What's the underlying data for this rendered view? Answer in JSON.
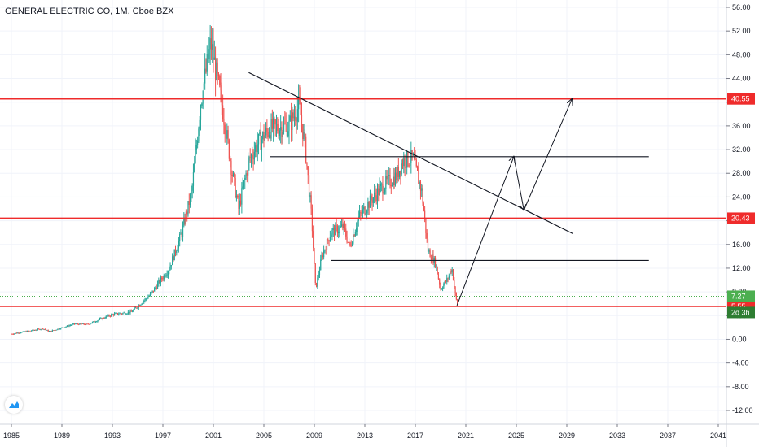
{
  "header": {
    "title": "GENERAL ELECTRIC CO, 1M, Cboe BZX"
  },
  "badges": {
    "resistance_high": "40.55",
    "resistance_mid": "20.43",
    "last_price": "7.27",
    "countdown": "2d 3h",
    "support_low": "5.55"
  },
  "colors": {
    "up_candle": "#26a69a",
    "down_candle": "#ef5350",
    "horizontal_line": "#ef2b2b",
    "trend_line": "#131722",
    "last_price_badge": "#4caf50",
    "countdown_badge": "#2e7d32",
    "level_badge": "#ef2b2b",
    "grid": "#f0f3fa"
  },
  "icons": {
    "logo": "tradingview-logo-icon"
  },
  "chart_data": {
    "type": "candlestick",
    "title": "GENERAL ELECTRIC CO, 1M, Cboe BZX",
    "x_ticks": [
      "1985",
      "1989",
      "1993",
      "1997",
      "2001",
      "2005",
      "2009",
      "2013",
      "2017",
      "2021",
      "2025",
      "2029",
      "2033",
      "2037",
      "2041"
    ],
    "y_ticks": [
      "56.00",
      "52.00",
      "48.00",
      "44.00",
      "40.00",
      "36.00",
      "32.00",
      "28.00",
      "24.00",
      "20.00",
      "16.00",
      "12.00",
      "8.00",
      "4.00",
      "0.00",
      "-4.00",
      "-8.00",
      "-12.00"
    ],
    "xlim": [
      1984.6,
      2042.4
    ],
    "ylim": [
      -14.4,
      57.8
    ],
    "price_anchors": [
      [
        1985.0,
        0.9
      ],
      [
        1987.5,
        1.8
      ],
      [
        1988.0,
        1.3
      ],
      [
        1990.0,
        2.6
      ],
      [
        1991.0,
        2.5
      ],
      [
        1993.0,
        4.2
      ],
      [
        1994.5,
        4.6
      ],
      [
        1996.0,
        7.5
      ],
      [
        1997.5,
        12.0
      ],
      [
        1998.5,
        18.0
      ],
      [
        1999.3,
        25.0
      ],
      [
        2000.0,
        40.0
      ],
      [
        2000.8,
        50.0
      ],
      [
        2001.3,
        44.0
      ],
      [
        2001.8,
        38.0
      ],
      [
        2002.5,
        28.0
      ],
      [
        2003.0,
        22.0
      ],
      [
        2003.8,
        30.0
      ],
      [
        2004.5,
        33.0
      ],
      [
        2005.5,
        35.5
      ],
      [
        2007.0,
        36.0
      ],
      [
        2007.8,
        39.5
      ],
      [
        2008.3,
        32.0
      ],
      [
        2008.8,
        20.0
      ],
      [
        2009.1,
        8.5
      ],
      [
        2009.6,
        14.0
      ],
      [
        2010.3,
        18.0
      ],
      [
        2011.3,
        19.0
      ],
      [
        2011.8,
        15.5
      ],
      [
        2012.5,
        20.5
      ],
      [
        2013.5,
        23.5
      ],
      [
        2014.5,
        26.0
      ],
      [
        2015.5,
        27.5
      ],
      [
        2016.0,
        30.0
      ],
      [
        2016.8,
        30.5
      ],
      [
        2017.5,
        25.0
      ],
      [
        2018.0,
        15.0
      ],
      [
        2018.6,
        12.8
      ],
      [
        2019.0,
        8.5
      ],
      [
        2019.5,
        10.0
      ],
      [
        2019.9,
        12.0
      ],
      [
        2020.2,
        7.0
      ],
      [
        2020.4,
        5.6
      ]
    ],
    "horizontal_levels": [
      {
        "value": 40.55,
        "label": "40.55",
        "color": "#ef2b2b"
      },
      {
        "value": 20.43,
        "label": "20.43",
        "color": "#ef2b2b"
      },
      {
        "value": 5.55,
        "label": "5.55",
        "color": "#ef2b2b"
      }
    ],
    "last_price": {
      "value": 7.27,
      "label": "7.27",
      "countdown": "2d 3h"
    },
    "trend_line": {
      "from": [
        2003.8,
        45.0
      ],
      "to": [
        2029.5,
        17.8
      ]
    },
    "black_levels": [
      {
        "value": 30.8,
        "x_from": 2005.5,
        "x_to": 2035.5
      },
      {
        "value": 13.3,
        "x_from": 2010.3,
        "x_to": 2035.5
      }
    ],
    "projection_path": [
      [
        2020.3,
        5.7
      ],
      [
        2024.8,
        30.8
      ],
      [
        2025.6,
        21.8
      ],
      [
        2029.4,
        40.5
      ]
    ]
  }
}
